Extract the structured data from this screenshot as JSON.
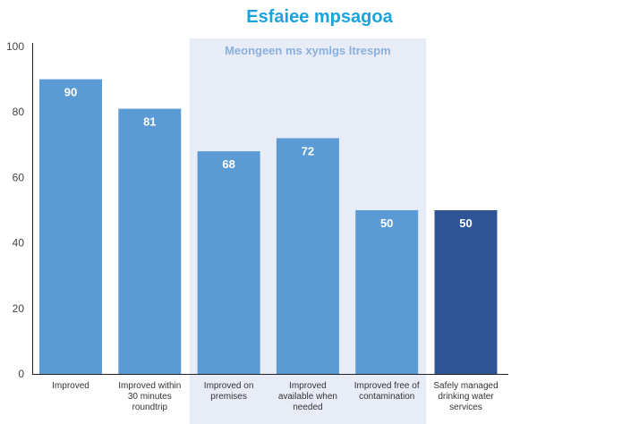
{
  "chart_data": {
    "type": "bar",
    "title": "Esfaiee mpsagoa",
    "xlabel": "",
    "ylabel": "",
    "ylim": [
      0,
      100
    ],
    "yticks": [
      0,
      20,
      40,
      60,
      80,
      100
    ],
    "categories": [
      [
        "Improved"
      ],
      [
        "Improved within",
        "30 minutes",
        "roundtrip"
      ],
      [
        "Improved on",
        "premises"
      ],
      [
        "Improved",
        "available when",
        "needed"
      ],
      [
        "Improved free of",
        "contamination"
      ],
      [
        "Safely managed",
        "drinking water",
        "services"
      ]
    ],
    "values": [
      90,
      81,
      68,
      72,
      50,
      50
    ],
    "data_labels": [
      "90",
      "81",
      "68",
      "72",
      "50",
      "50"
    ],
    "bar_colors": [
      "#5b9bd5",
      "#5b9bd5",
      "#5b9bd5",
      "#5b9bd5",
      "#5b9bd5",
      "#2e5597"
    ],
    "highlight_band": {
      "label": "Meongeen ms xymlgs ltrespm",
      "from_index": 2,
      "to_index": 4,
      "color": "#e8ecf7"
    },
    "grid": false
  }
}
